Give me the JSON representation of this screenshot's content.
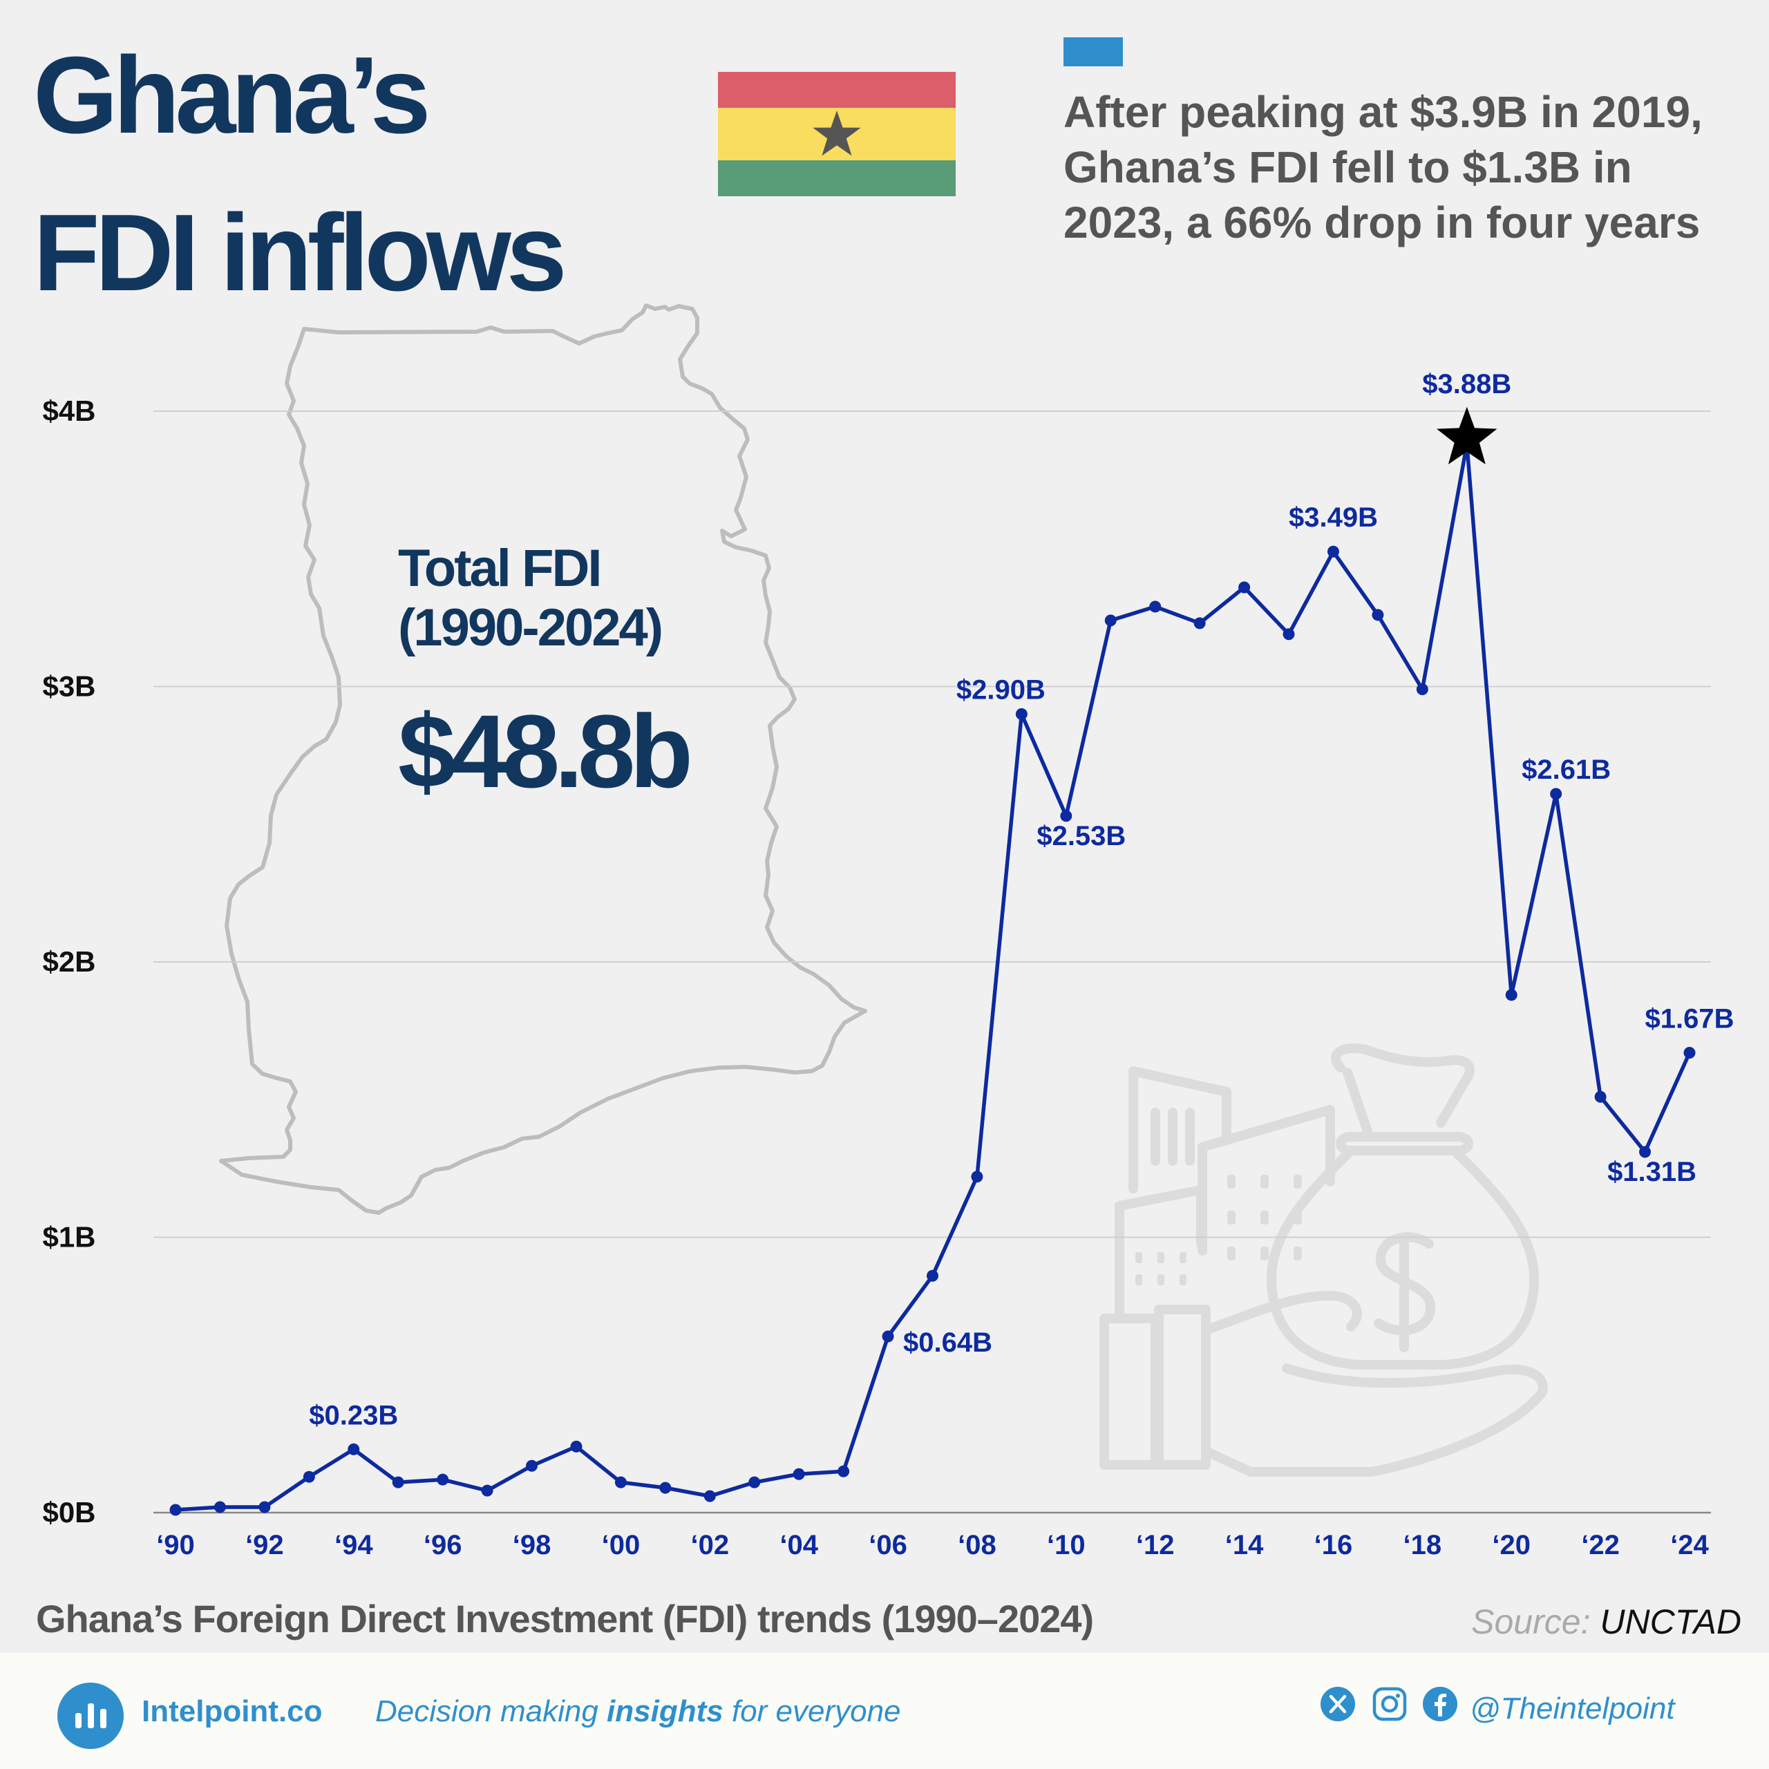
{
  "header": {
    "title_line1": "Ghana’s",
    "title_line2": "FDI inflows",
    "subtitle_line1": "After peaking at $3.9B in 2019,",
    "subtitle_line2": "Ghana’s FDI fell to $1.3B in",
    "subtitle_line3": "2023, a 66% drop in four years"
  },
  "flag": {
    "top_color": "#dc5e6a",
    "middle_color": "#f9dd5f",
    "bottom_color": "#589d78",
    "star_color": "#555555"
  },
  "colors": {
    "title": "#12375f",
    "line": "#0d2a9e",
    "accent": "#2f8fcc",
    "map_outline": "#bdbdbd",
    "background": "#f1f0f0"
  },
  "total": {
    "label_line1": "Total FDI",
    "label_line2": "(1990-2024)",
    "value": "$48.8b"
  },
  "chart_data": {
    "type": "line",
    "title": "",
    "xlabel": "",
    "ylabel": "",
    "ylim": [
      0,
      4
    ],
    "y_ticks": [
      0,
      1,
      2,
      3,
      4
    ],
    "y_tick_labels": [
      "$0B",
      "$1B",
      "$2B",
      "$3B",
      "$4B"
    ],
    "x": [
      1990,
      1991,
      1992,
      1993,
      1994,
      1995,
      1996,
      1997,
      1998,
      1999,
      2000,
      2001,
      2002,
      2003,
      2004,
      2005,
      2006,
      2007,
      2008,
      2009,
      2010,
      2011,
      2012,
      2013,
      2014,
      2015,
      2016,
      2017,
      2018,
      2019,
      2020,
      2021,
      2022,
      2023,
      2024
    ],
    "x_ticks": [
      1990,
      1992,
      1994,
      1996,
      1998,
      2000,
      2002,
      2004,
      2006,
      2008,
      2010,
      2012,
      2014,
      2016,
      2018,
      2020,
      2022,
      2024
    ],
    "x_tick_labels": [
      "‘90",
      "‘92",
      "‘94",
      "‘96",
      "‘98",
      "‘00",
      "‘02",
      "‘04",
      "‘06",
      "‘08",
      "‘10",
      "‘12",
      "‘14",
      "‘16",
      "‘18",
      "‘20",
      "‘22",
      "‘24"
    ],
    "values": [
      0.01,
      0.02,
      0.02,
      0.13,
      0.23,
      0.11,
      0.12,
      0.08,
      0.17,
      0.24,
      0.11,
      0.09,
      0.06,
      0.11,
      0.14,
      0.15,
      0.64,
      0.86,
      1.22,
      2.9,
      2.53,
      3.24,
      3.29,
      3.23,
      3.36,
      3.19,
      3.49,
      3.26,
      2.99,
      3.88,
      1.88,
      2.61,
      1.51,
      1.31,
      1.67
    ],
    "peak_year": 2019,
    "grid": true,
    "annotations": [
      {
        "x": 1994,
        "text": "$0.23B",
        "pos": "above"
      },
      {
        "x": 2006,
        "text": "$0.64B",
        "pos": "right"
      },
      {
        "x": 2009,
        "text": "$2.90B",
        "pos": "above-left"
      },
      {
        "x": 2010,
        "text": "$2.53B",
        "pos": "below-right"
      },
      {
        "x": 2016,
        "text": "$3.49B",
        "pos": "above"
      },
      {
        "x": 2019,
        "text": "$3.88B",
        "pos": "above-peak"
      },
      {
        "x": 2021,
        "text": "$2.61B",
        "pos": "above-right"
      },
      {
        "x": 2023,
        "text": "$1.31B",
        "pos": "below"
      },
      {
        "x": 2024,
        "text": "$1.67B",
        "pos": "above"
      }
    ]
  },
  "caption": "Ghana’s Foreign Direct Investment (FDI) trends (1990–2024)",
  "source": {
    "label": "Source:",
    "value": "UNCTAD"
  },
  "footer": {
    "brand": "Intelpoint.co",
    "tagline_before": "Decision making ",
    "tagline_bold": "insights",
    "tagline_after": " for everyone",
    "handle": "@Theintelpoint",
    "icons": [
      "logo-bars-icon",
      "x-icon",
      "instagram-icon",
      "facebook-icon"
    ]
  }
}
